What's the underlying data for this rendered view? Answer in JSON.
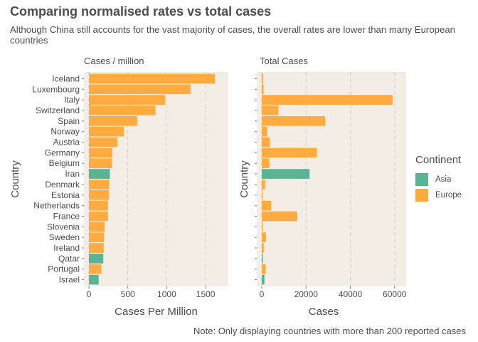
{
  "title": "Comparing normalised rates vs total cases",
  "subtitle": "Although China still accounts for the vast majority of cases, the overall rates are lower than many European countries",
  "caption": "Note: Only displaying countries with more than 200 reported cases",
  "colors": {
    "Asia": "#5bb395",
    "Europe": "#ffab40",
    "panel": "#f4ede6",
    "grid": "#d9d2cc"
  },
  "legend": {
    "title": "Continent",
    "items": [
      "Asia",
      "Europe"
    ]
  },
  "chart_data": [
    {
      "type": "bar",
      "orientation": "horizontal",
      "panel_title": "Cases / million",
      "xlabel": "Cases Per Million",
      "ylabel": "Country",
      "xlim": [
        0,
        1700
      ],
      "xticks": [
        0,
        500,
        1000,
        1500
      ],
      "xtick_labels": [
        "0",
        "500",
        "1000",
        "1500"
      ],
      "grid": "vertical dashed",
      "categories": [
        "Iceland",
        "Luxembourg",
        "Italy",
        "Switzerland",
        "Spain",
        "Norway",
        "Austria",
        "Germany",
        "Belgium",
        "Iran",
        "Denmark",
        "Estonia",
        "Netherlands",
        "France",
        "Slovenia",
        "Sweden",
        "Ireland",
        "Qatar",
        "Portugal",
        "Israel"
      ],
      "continent": [
        "Europe",
        "Europe",
        "Europe",
        "Europe",
        "Europe",
        "Europe",
        "Europe",
        "Europe",
        "Europe",
        "Asia",
        "Europe",
        "Europe",
        "Europe",
        "Europe",
        "Europe",
        "Europe",
        "Europe",
        "Asia",
        "Europe",
        "Asia"
      ],
      "values": [
        1620,
        1305,
        980,
        855,
        620,
        450,
        365,
        300,
        295,
        270,
        260,
        255,
        245,
        245,
        200,
        195,
        190,
        185,
        160,
        125
      ]
    },
    {
      "type": "bar",
      "orientation": "horizontal",
      "panel_title": "Total Cases",
      "xlabel": "Cases",
      "ylabel": "Country",
      "xlim": [
        0,
        62000
      ],
      "xticks": [
        0,
        20000,
        40000,
        60000
      ],
      "xtick_labels": [
        "0",
        "20000",
        "40000",
        "60000"
      ],
      "grid": "vertical dashed",
      "categories": [
        "Iceland",
        "Luxembourg",
        "Italy",
        "Switzerland",
        "Spain",
        "Norway",
        "Austria",
        "Germany",
        "Belgium",
        "Iran",
        "Denmark",
        "Estonia",
        "Netherlands",
        "France",
        "Slovenia",
        "Sweden",
        "Ireland",
        "Qatar",
        "Portugal",
        "Israel"
      ],
      "continent": [
        "Europe",
        "Europe",
        "Europe",
        "Europe",
        "Europe",
        "Europe",
        "Europe",
        "Europe",
        "Europe",
        "Asia",
        "Europe",
        "Europe",
        "Europe",
        "Europe",
        "Europe",
        "Europe",
        "Europe",
        "Asia",
        "Europe",
        "Asia"
      ],
      "values": [
        570,
        800,
        59100,
        7500,
        28600,
        2400,
        3600,
        24900,
        3400,
        21600,
        1500,
        350,
        4200,
        16000,
        400,
        1900,
        900,
        490,
        1800,
        1200
      ]
    }
  ]
}
